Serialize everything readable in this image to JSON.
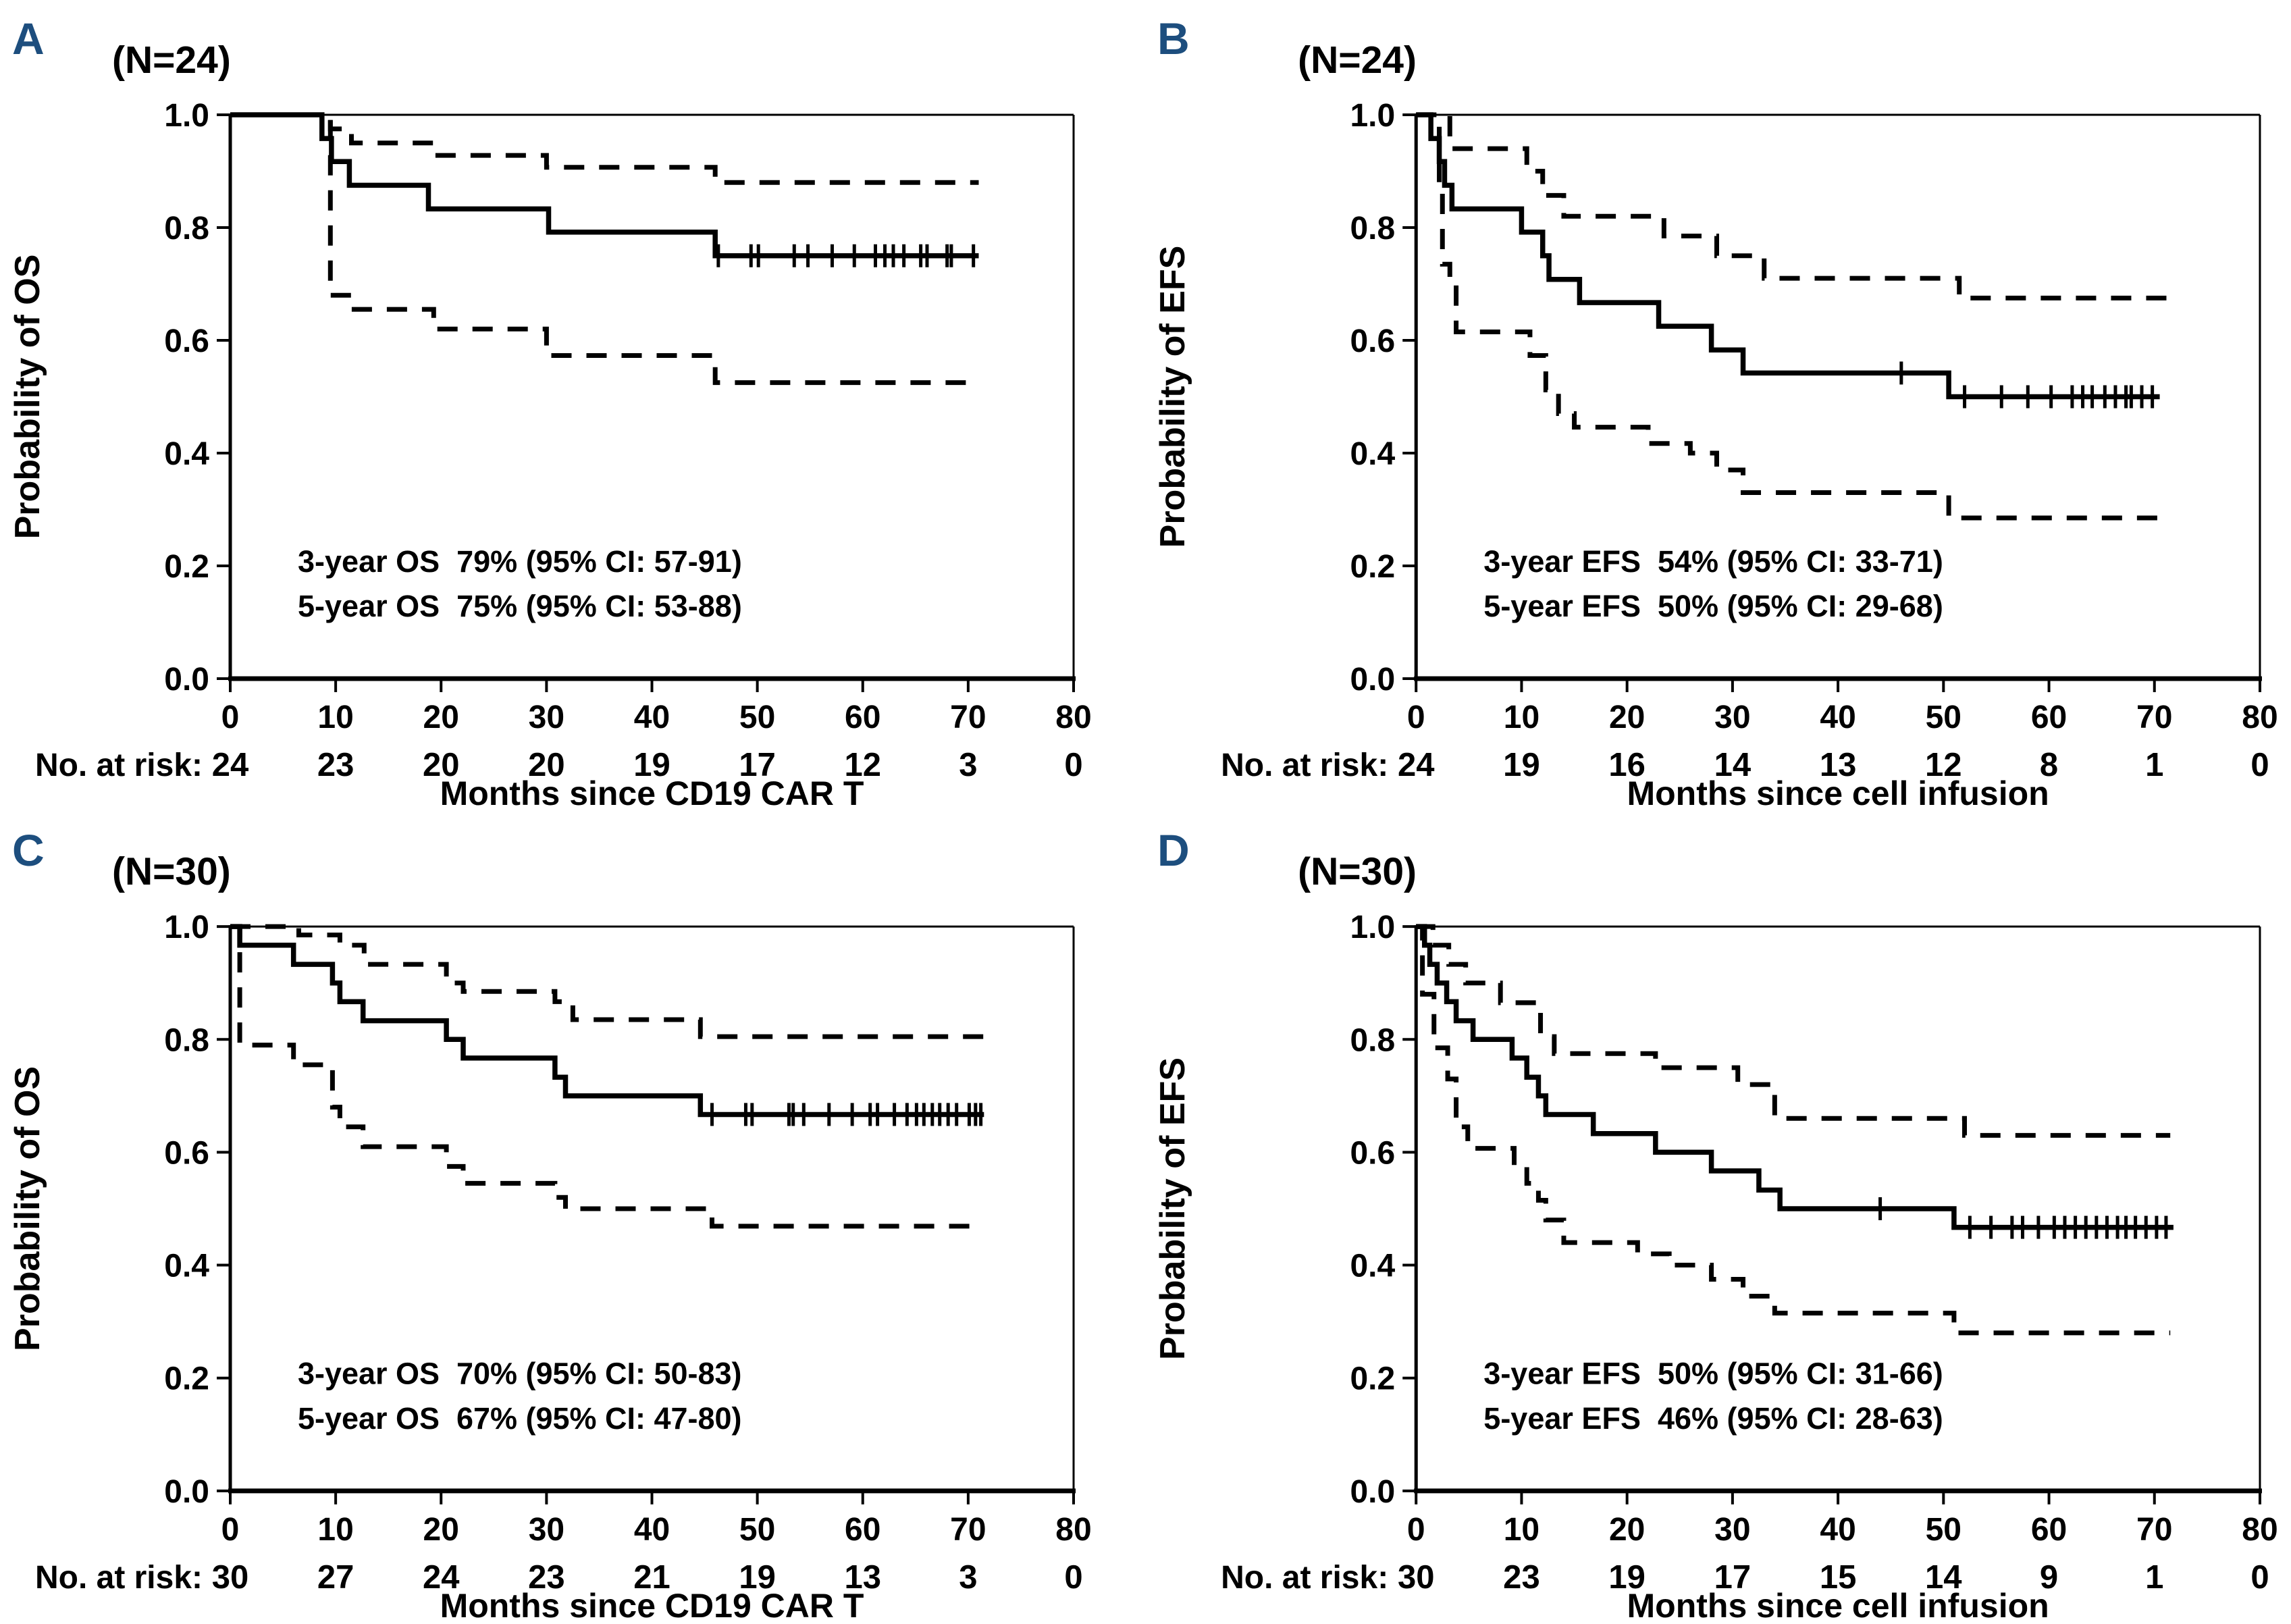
{
  "colors": {
    "background": "#ffffff",
    "line": "#000000",
    "panel_letter": "#1d4e7e"
  },
  "chart_data": [
    {
      "panel": "A",
      "type": "line",
      "subtype": "kaplan-meier-step",
      "n_label": "(N=24)",
      "ylabel": "Probability of OS",
      "xlabel": "Months since CD19 CAR T",
      "xlim": [
        0,
        80
      ],
      "ylim": [
        0.0,
        1.0
      ],
      "x_ticks": [
        0,
        10,
        20,
        30,
        40,
        50,
        60,
        70,
        80
      ],
      "y_ticks": [
        "0.0",
        "0.2",
        "0.4",
        "0.6",
        "0.8",
        "1.0"
      ],
      "grid": false,
      "annotation_lines": [
        "3-year OS  79% (95% CI: 57-91)",
        "5-year OS  75% (95% CI: 53-88)"
      ],
      "risk_label": "No. at risk:",
      "risk_counts": [
        24,
        23,
        20,
        20,
        19,
        17,
        12,
        3,
        0
      ],
      "series": [
        {
          "name": "OS estimate",
          "style": "solid",
          "end_month": 71,
          "steps": [
            [
              0,
              1.0
            ],
            [
              8.7,
              0.958
            ],
            [
              9.6,
              0.917
            ],
            [
              11.3,
              0.875
            ],
            [
              18.8,
              0.833
            ],
            [
              30.2,
              0.792
            ],
            [
              46,
              0.75
            ]
          ]
        },
        {
          "name": "95% CI upper",
          "style": "dashed",
          "end_month": 71,
          "steps": [
            [
              0,
              1.0
            ],
            [
              9.5,
              0.975
            ],
            [
              11.5,
              0.95
            ],
            [
              19.3,
              0.928
            ],
            [
              30,
              0.907
            ],
            [
              46,
              0.88
            ]
          ]
        },
        {
          "name": "95% CI lower",
          "style": "dashed",
          "end_month": 71,
          "steps": [
            [
              0,
              1.0
            ],
            [
              9.5,
              0.68
            ],
            [
              11.5,
              0.655
            ],
            [
              19.3,
              0.62
            ],
            [
              30,
              0.573
            ],
            [
              46,
              0.525
            ]
          ]
        }
      ],
      "censor_months": [
        46.3,
        49.4,
        50.1,
        53.5,
        54.8,
        57.1,
        59.2,
        61.2,
        62.1,
        62.9,
        63.9,
        65.5,
        66.1,
        68.0,
        68.4,
        70.5
      ]
    },
    {
      "panel": "B",
      "type": "line",
      "subtype": "kaplan-meier-step",
      "n_label": "(N=24)",
      "ylabel": "Probability of EFS",
      "xlabel": "Months since cell infusion",
      "xlim": [
        0,
        80
      ],
      "ylim": [
        0.0,
        1.0
      ],
      "x_ticks": [
        0,
        10,
        20,
        30,
        40,
        50,
        60,
        70,
        80
      ],
      "y_ticks": [
        "0.0",
        "0.2",
        "0.4",
        "0.6",
        "0.8",
        "1.0"
      ],
      "grid": false,
      "annotation_lines": [
        "3-year EFS  54% (95% CI: 33-71)",
        "5-year EFS  50% (95% CI: 29-68)"
      ],
      "risk_label": "No. at risk:",
      "risk_counts": [
        24,
        19,
        16,
        14,
        13,
        12,
        8,
        1,
        0
      ],
      "series": [
        {
          "name": "EFS estimate",
          "style": "solid",
          "end_month": 70.5,
          "steps": [
            [
              0,
              1.0
            ],
            [
              1.4,
              0.958
            ],
            [
              2.2,
              0.917
            ],
            [
              2.7,
              0.875
            ],
            [
              3.4,
              0.833
            ],
            [
              10,
              0.792
            ],
            [
              12,
              0.75
            ],
            [
              12.6,
              0.708
            ],
            [
              15.5,
              0.667
            ],
            [
              23,
              0.625
            ],
            [
              28,
              0.583
            ],
            [
              31,
              0.542
            ],
            [
              50.5,
              0.5
            ]
          ]
        },
        {
          "name": "95% CI upper",
          "style": "dashed",
          "end_month": 71.5,
          "steps": [
            [
              0,
              1.0
            ],
            [
              3.2,
              0.94
            ],
            [
              10.5,
              0.9
            ],
            [
              12,
              0.857
            ],
            [
              14,
              0.82
            ],
            [
              23.5,
              0.785
            ],
            [
              28.5,
              0.75
            ],
            [
              33,
              0.71
            ],
            [
              51.5,
              0.675
            ]
          ]
        },
        {
          "name": "95% CI lower",
          "style": "dashed",
          "end_month": 71,
          "steps": [
            [
              0,
              1.0
            ],
            [
              2.2,
              0.88
            ],
            [
              2.5,
              0.735
            ],
            [
              3.2,
              0.7
            ],
            [
              3.8,
              0.615
            ],
            [
              10.8,
              0.573
            ],
            [
              12.3,
              0.512
            ],
            [
              13.5,
              0.47
            ],
            [
              15,
              0.446
            ],
            [
              22,
              0.417
            ],
            [
              26,
              0.4
            ],
            [
              28.5,
              0.37
            ],
            [
              31,
              0.33
            ],
            [
              50.5,
              0.285
            ]
          ]
        }
      ],
      "censor_months": [
        46,
        52,
        55.5,
        58,
        60.2,
        62.2,
        63.2,
        64.1,
        65.3,
        66.3,
        67.3,
        67.8,
        68.8,
        69.8
      ]
    },
    {
      "panel": "C",
      "type": "line",
      "subtype": "kaplan-meier-step",
      "n_label": "(N=30)",
      "ylabel": "Probability of OS",
      "xlabel": "Months since CD19 CAR T",
      "xlim": [
        0,
        80
      ],
      "ylim": [
        0.0,
        1.0
      ],
      "x_ticks": [
        0,
        10,
        20,
        30,
        40,
        50,
        60,
        70,
        80
      ],
      "y_ticks": [
        "0.0",
        "0.2",
        "0.4",
        "0.6",
        "0.8",
        "1.0"
      ],
      "grid": false,
      "annotation_lines": [
        "3-year OS  70% (95% CI: 50-83)",
        "5-year OS  67% (95% CI: 47-80)"
      ],
      "risk_label": "No. at risk:",
      "risk_counts": [
        30,
        27,
        24,
        23,
        21,
        19,
        13,
        3,
        0
      ],
      "series": [
        {
          "name": "OS estimate",
          "style": "solid",
          "end_month": 71.5,
          "steps": [
            [
              0,
              1.0
            ],
            [
              0.9,
              0.967
            ],
            [
              6,
              0.933
            ],
            [
              9.7,
              0.9
            ],
            [
              10.4,
              0.867
            ],
            [
              12.6,
              0.833
            ],
            [
              20.5,
              0.8
            ],
            [
              22.1,
              0.767
            ],
            [
              30.8,
              0.733
            ],
            [
              31.8,
              0.7
            ],
            [
              44.6,
              0.667
            ]
          ]
        },
        {
          "name": "95% CI upper",
          "style": "dashed",
          "end_month": 71.5,
          "steps": [
            [
              0,
              1.0
            ],
            [
              6.5,
              0.985
            ],
            [
              10.4,
              0.967
            ],
            [
              12.7,
              0.933
            ],
            [
              20.5,
              0.9
            ],
            [
              22.1,
              0.885
            ],
            [
              30.8,
              0.867
            ],
            [
              32.5,
              0.835
            ],
            [
              44.6,
              0.805
            ]
          ]
        },
        {
          "name": "95% CI lower",
          "style": "dashed",
          "end_month": 71.5,
          "steps": [
            [
              0,
              1.0
            ],
            [
              0.9,
              0.79
            ],
            [
              6,
              0.755
            ],
            [
              9.7,
              0.68
            ],
            [
              10.4,
              0.645
            ],
            [
              12.6,
              0.61
            ],
            [
              20.5,
              0.575
            ],
            [
              22.1,
              0.545
            ],
            [
              30.8,
              0.52
            ],
            [
              31.8,
              0.5
            ],
            [
              45.7,
              0.469
            ]
          ]
        }
      ],
      "censor_months": [
        45.7,
        48.9,
        49.5,
        53.0,
        53.4,
        54.4,
        56.8,
        59.0,
        60.7,
        61.4,
        63.0,
        64.2,
        65.1,
        65.8,
        66.6,
        67.3,
        68.1,
        68.9,
        70.1,
        70.7,
        71.2
      ]
    },
    {
      "panel": "D",
      "type": "line",
      "subtype": "kaplan-meier-step",
      "n_label": "(N=30)",
      "ylabel": "Probability of EFS",
      "xlabel": "Months since cell infusion",
      "xlim": [
        0,
        80
      ],
      "ylim": [
        0.0,
        1.0
      ],
      "x_ticks": [
        0,
        10,
        20,
        30,
        40,
        50,
        60,
        70,
        80
      ],
      "y_ticks": [
        "0.0",
        "0.2",
        "0.4",
        "0.6",
        "0.8",
        "1.0"
      ],
      "grid": false,
      "annotation_lines": [
        "3-year EFS  50% (95% CI: 31-66)",
        "5-year EFS  46% (95% CI: 28-63)"
      ],
      "risk_label": "No. at risk:",
      "risk_counts": [
        30,
        23,
        19,
        17,
        15,
        14,
        9,
        1,
        0
      ],
      "series": [
        {
          "name": "EFS estimate",
          "style": "solid",
          "end_month": 71.8,
          "steps": [
            [
              0,
              1.0
            ],
            [
              0.8,
              0.967
            ],
            [
              1.3,
              0.933
            ],
            [
              2,
              0.9
            ],
            [
              2.9,
              0.867
            ],
            [
              3.8,
              0.833
            ],
            [
              5.4,
              0.8
            ],
            [
              9.1,
              0.767
            ],
            [
              10.5,
              0.733
            ],
            [
              11.6,
              0.7
            ],
            [
              12.3,
              0.667
            ],
            [
              16.8,
              0.633
            ],
            [
              22.7,
              0.6
            ],
            [
              28,
              0.567
            ],
            [
              32.5,
              0.533
            ],
            [
              34.5,
              0.5
            ],
            [
              51,
              0.467
            ]
          ]
        },
        {
          "name": "95% CI upper",
          "style": "dashed",
          "end_month": 71.5,
          "steps": [
            [
              0,
              1.0
            ],
            [
              1.6,
              0.967
            ],
            [
              3.1,
              0.933
            ],
            [
              4.7,
              0.9
            ],
            [
              8,
              0.865
            ],
            [
              11.8,
              0.805
            ],
            [
              13.1,
              0.775
            ],
            [
              22.7,
              0.75
            ],
            [
              30.5,
              0.72
            ],
            [
              34,
              0.66
            ],
            [
              52,
              0.63
            ]
          ]
        },
        {
          "name": "95% CI lower",
          "style": "dashed",
          "end_month": 71.5,
          "steps": [
            [
              0,
              1.0
            ],
            [
              0.6,
              0.88
            ],
            [
              1.7,
              0.785
            ],
            [
              3,
              0.73
            ],
            [
              3.8,
              0.645
            ],
            [
              4.9,
              0.607
            ],
            [
              9.3,
              0.577
            ],
            [
              10.5,
              0.545
            ],
            [
              11.6,
              0.515
            ],
            [
              12.3,
              0.48
            ],
            [
              14,
              0.44
            ],
            [
              21,
              0.42
            ],
            [
              24,
              0.4
            ],
            [
              28,
              0.375
            ],
            [
              31,
              0.345
            ],
            [
              34,
              0.315
            ],
            [
              51,
              0.28
            ]
          ]
        }
      ],
      "censor_months": [
        44,
        52.5,
        54.5,
        56.5,
        57.5,
        59,
        60.5,
        61.5,
        62.5,
        63.5,
        64.5,
        65.5,
        66.5,
        67.3,
        68.2,
        69.2,
        70.2,
        71.1
      ]
    }
  ]
}
